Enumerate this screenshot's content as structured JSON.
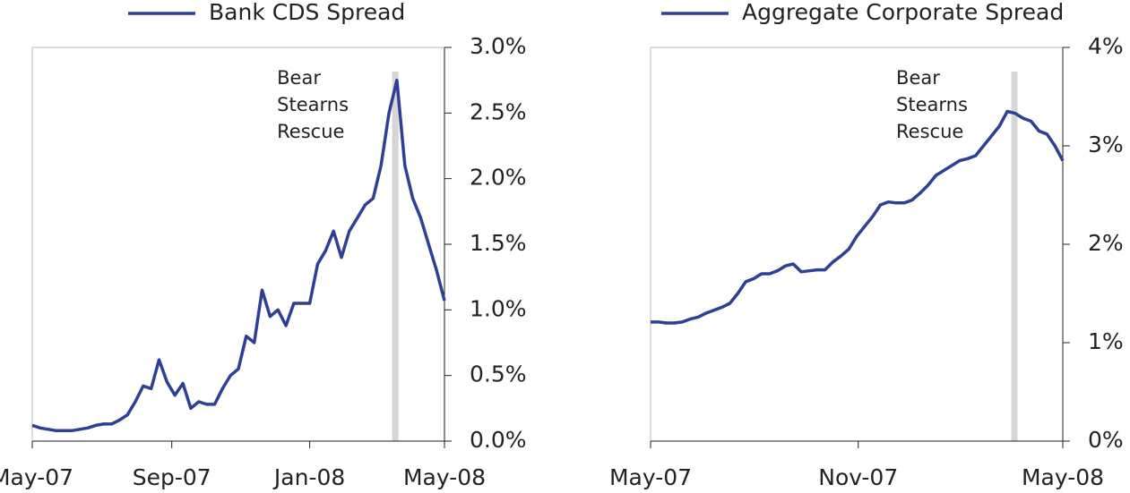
{
  "chart_data": [
    {
      "type": "line",
      "series": [
        {
          "name": "Bank CDS Spread",
          "color": "#2f3f94",
          "values": [
            0.12,
            0.1,
            0.09,
            0.08,
            0.08,
            0.08,
            0.09,
            0.1,
            0.12,
            0.13,
            0.13,
            0.16,
            0.2,
            0.3,
            0.42,
            0.4,
            0.62,
            0.45,
            0.35,
            0.44,
            0.25,
            0.3,
            0.28,
            0.28,
            0.4,
            0.5,
            0.55,
            0.8,
            0.75,
            1.15,
            0.95,
            1.0,
            0.88,
            1.05,
            1.05,
            1.05,
            1.35,
            1.45,
            1.6,
            1.4,
            1.6,
            1.7,
            1.8,
            1.85,
            2.1,
            2.5,
            2.75,
            2.1,
            1.85,
            1.7,
            1.5,
            1.3,
            1.07
          ]
        }
      ],
      "xlim": [
        0,
        52
      ],
      "xticks": [
        {
          "value": 0,
          "label": "May-07"
        },
        {
          "value": 17.6,
          "label": "Sep-07"
        },
        {
          "value": 35,
          "label": "Jan-08"
        },
        {
          "value": 52,
          "label": "May-08"
        }
      ],
      "ylim": [
        0,
        3
      ],
      "yticks": [
        {
          "value": 0,
          "label": "0.0%"
        },
        {
          "value": 0.5,
          "label": "0.5%"
        },
        {
          "value": 1,
          "label": "1.0%"
        },
        {
          "value": 1.5,
          "label": "1.5%"
        },
        {
          "value": 2,
          "label": "2.0%"
        },
        {
          "value": 2.5,
          "label": "2.5%"
        },
        {
          "value": 3,
          "label": "3.0%"
        }
      ],
      "highlight_x": 45.8,
      "annotation": [
        "Bear",
        "Stearns",
        "Rescue"
      ]
    },
    {
      "type": "line",
      "series": [
        {
          "name": "Aggregate Corporate Spread",
          "color": "#2f3f94",
          "values": [
            1.21,
            1.21,
            1.2,
            1.2,
            1.21,
            1.24,
            1.26,
            1.3,
            1.33,
            1.36,
            1.4,
            1.5,
            1.62,
            1.65,
            1.7,
            1.7,
            1.73,
            1.78,
            1.8,
            1.72,
            1.73,
            1.74,
            1.74,
            1.82,
            1.88,
            1.95,
            2.08,
            2.18,
            2.28,
            2.4,
            2.43,
            2.42,
            2.42,
            2.45,
            2.52,
            2.6,
            2.7,
            2.75,
            2.8,
            2.85,
            2.87,
            2.9,
            3.0,
            3.1,
            3.2,
            3.35,
            3.33,
            3.28,
            3.25,
            3.15,
            3.12,
            3.0,
            2.85
          ]
        }
      ],
      "xlim": [
        0,
        52
      ],
      "xticks": [
        {
          "value": 0,
          "label": "May-07"
        },
        {
          "value": 26.2,
          "label": "Nov-07"
        },
        {
          "value": 52,
          "label": "May-08"
        }
      ],
      "ylim": [
        0,
        4
      ],
      "yticks": [
        {
          "value": 0,
          "label": "0%"
        },
        {
          "value": 1,
          "label": "1%"
        },
        {
          "value": 2,
          "label": "2%"
        },
        {
          "value": 3,
          "label": "3%"
        },
        {
          "value": 4,
          "label": "4%"
        }
      ],
      "highlight_x": 45.9,
      "annotation": [
        "Bear",
        "Stearns",
        "Rescue"
      ]
    }
  ]
}
